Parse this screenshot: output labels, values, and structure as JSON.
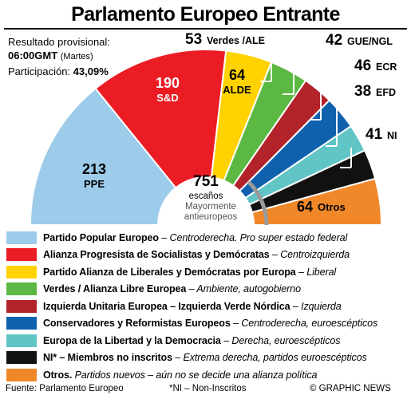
{
  "title": "Parlamento Europeo Entrante",
  "info": {
    "result_label": "Resultado provisional:",
    "time": "06:00",
    "time_zone": "GMT",
    "day": "(Martes)",
    "participation_label": "Participación:",
    "participation_value": "43,09%"
  },
  "center": {
    "total": "751",
    "total_label": "escaños",
    "eurosceptic_label_1": "Mayormente",
    "eurosceptic_label_2": "antieuropeos"
  },
  "chart_data": {
    "type": "pie",
    "title": "Parlamento Europeo Entrante",
    "total_seats": 751,
    "slices": [
      {
        "label": "PPE",
        "value": 213,
        "color": "#9dcbea"
      },
      {
        "label": "S&D",
        "value": 190,
        "color": "#ec1c24"
      },
      {
        "label": "ALDE",
        "value": 64,
        "color": "#ffd200"
      },
      {
        "label": "Verdes /ALE",
        "value": 53,
        "color": "#5bb843"
      },
      {
        "label": "GUE/NGL",
        "value": 42,
        "color": "#b2232a"
      },
      {
        "label": "ECR",
        "value": 46,
        "color": "#1061ad"
      },
      {
        "label": "EFD",
        "value": 38,
        "color": "#61c5c6"
      },
      {
        "label": "NI",
        "value": 41,
        "color": "#111111"
      },
      {
        "label": "Otros",
        "value": 64,
        "color": "#f0882a"
      }
    ]
  },
  "legend": [
    {
      "name": "Partido Popular Europeo",
      "sep": " – ",
      "desc": "Centroderecha. Pro super estado federal",
      "color": "#9dcbea"
    },
    {
      "name": "Alianza Progresista de Socialistas y Demócratas",
      "sep": " – ",
      "desc": "Centroizquierda",
      "color": "#ec1c24"
    },
    {
      "name": "Partido Alianza de Liberales y Demócratas por Europa",
      "sep": " – ",
      "desc": "Liberal",
      "color": "#ffd200"
    },
    {
      "name": "Verdes / Alianza Libre Europea",
      "sep": " – ",
      "desc": "Ambiente, autogobierno",
      "color": "#5bb843"
    },
    {
      "name": "Izquierda Unitaria Europea – Izquierda Verde Nórdica",
      "sep": " – ",
      "desc": "Izquierda",
      "color": "#b2232a"
    },
    {
      "name": "Conservadores y Reformistas Europeos",
      "sep": " – ",
      "desc": "Centroderecha, euroescépticos",
      "color": "#1061ad"
    },
    {
      "name": "Europa de la Libertad y la Democracia",
      "sep": " – ",
      "desc": "Derecha, euroescépticos",
      "color": "#61c5c6"
    },
    {
      "name": "NI* – Miembros no inscritos",
      "sep": " – ",
      "desc": "Extrema derecha, partidos euroescépticos",
      "color": "#111111"
    },
    {
      "name": "Otros.",
      "sep": " ",
      "desc": "Partidos nuevos – aún no se decide una alianza política",
      "color": "#f0882a"
    }
  ],
  "footer": {
    "source": "Fuente: Parlamento Europeo",
    "note": "*NI – Non-Inscritos",
    "credit": "© GRAPHIC NEWS"
  }
}
